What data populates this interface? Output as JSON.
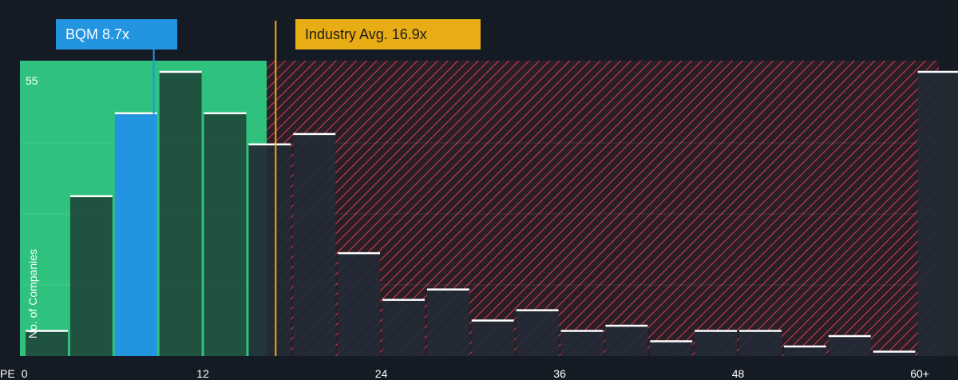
{
  "company_badge": "BQM 8.7x",
  "industry_badge": "Industry Avg. 16.9x",
  "colors": {
    "background": "#151b24",
    "fair_zone": "#2ec27e",
    "overvalued_zone": "#e0455a",
    "company_bar": "#2394e0",
    "industry_line": "#e8ac14",
    "bar_in_fair": "#1f4a3a",
    "bar_in_overvalued": "#232a35"
  },
  "chart_data": {
    "type": "bar",
    "title": "",
    "xlabel": "PE",
    "ylabel": "No. of Companies",
    "x_ticks": [
      {
        "value": 0,
        "label": "0"
      },
      {
        "value": 12,
        "label": "12"
      },
      {
        "value": 24,
        "label": "24"
      },
      {
        "value": 36,
        "label": "36"
      },
      {
        "value": 48,
        "label": "48"
      },
      {
        "value": 60,
        "label": "60+"
      }
    ],
    "y_top_label": "55",
    "ylim": [
      0,
      57
    ],
    "xlim": [
      -0.3,
      61.5
    ],
    "bin_width": 3,
    "bins": [
      {
        "start": 0,
        "value": 5
      },
      {
        "start": 3,
        "value": 31
      },
      {
        "start": 6,
        "value": 47
      },
      {
        "start": 9,
        "value": 55
      },
      {
        "start": 12,
        "value": 47
      },
      {
        "start": 15,
        "value": 41
      },
      {
        "start": 18,
        "value": 43
      },
      {
        "start": 21,
        "value": 20
      },
      {
        "start": 24,
        "value": 11
      },
      {
        "start": 27,
        "value": 13
      },
      {
        "start": 30,
        "value": 7
      },
      {
        "start": 33,
        "value": 9
      },
      {
        "start": 36,
        "value": 5
      },
      {
        "start": 39,
        "value": 6
      },
      {
        "start": 42,
        "value": 3
      },
      {
        "start": 45,
        "value": 5
      },
      {
        "start": 48,
        "value": 5
      },
      {
        "start": 51,
        "value": 2
      },
      {
        "start": 54,
        "value": 4
      },
      {
        "start": 57,
        "value": 1
      },
      {
        "start": 60,
        "value": 55
      }
    ],
    "company_pe": 8.7,
    "industry_avg_pe": 16.9,
    "fair_zone_end": 16.3,
    "grid": true
  }
}
